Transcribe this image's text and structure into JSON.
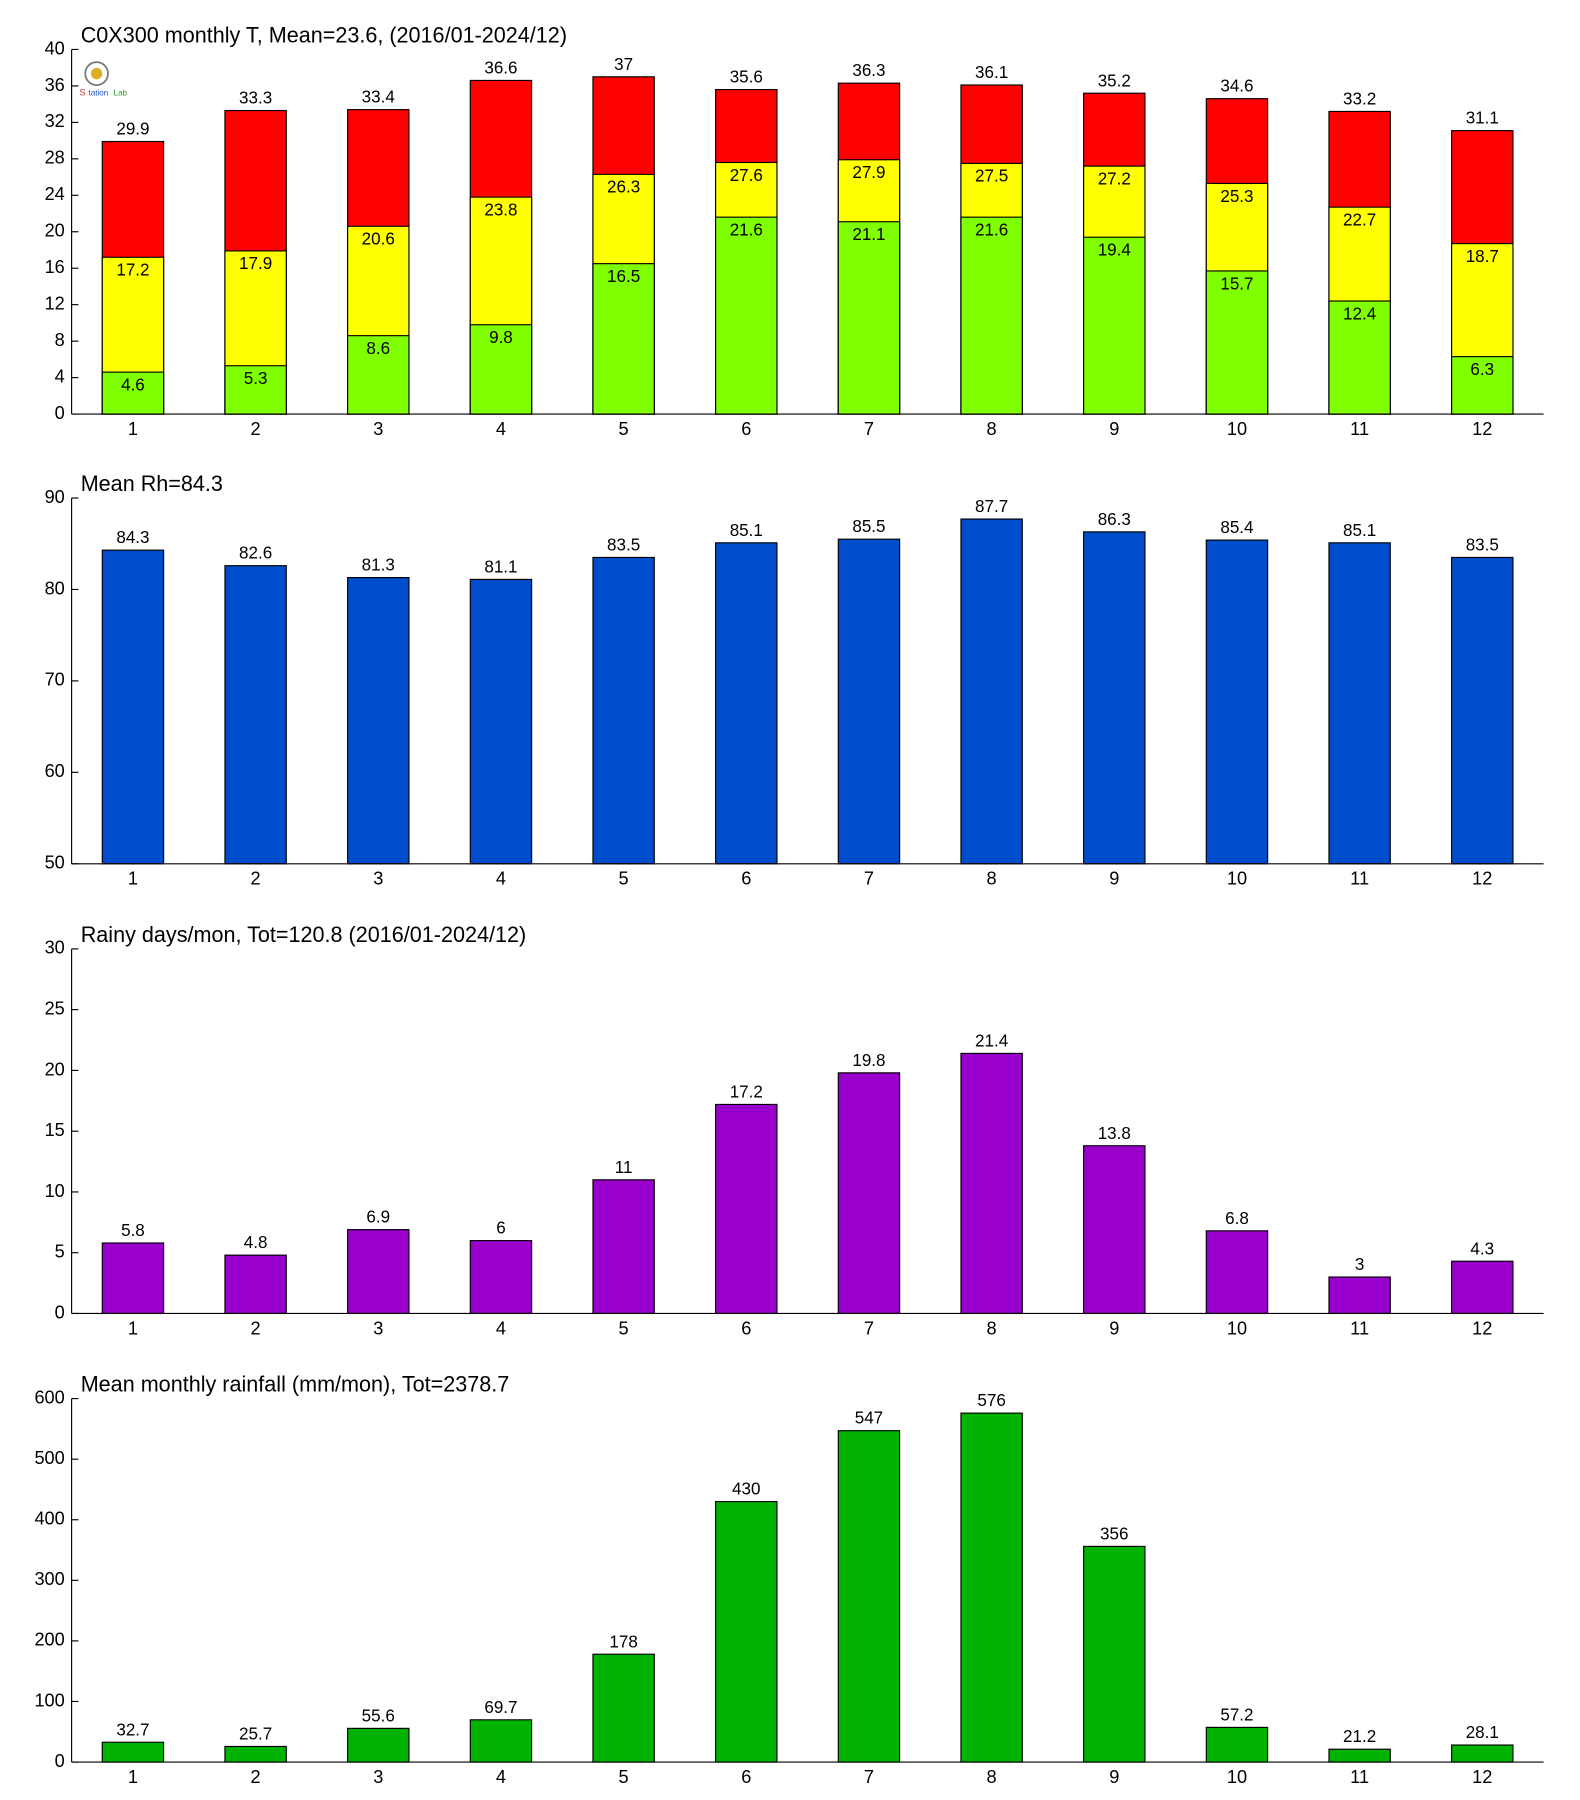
{
  "chart_data": [
    {
      "type": "bar",
      "title": "C0X300 monthly T, Mean=23.6, (2016/01-2024/12)",
      "categories": [
        "1",
        "2",
        "3",
        "4",
        "5",
        "6",
        "7",
        "8",
        "9",
        "10",
        "11",
        "12"
      ],
      "series": [
        {
          "color": "#ff0000",
          "values": [
            29.9,
            33.3,
            33.4,
            36.6,
            37,
            35.6,
            36.3,
            36.1,
            35.2,
            34.6,
            33.2,
            31.1
          ]
        },
        {
          "color": "#ffff00",
          "values": [
            17.2,
            17.9,
            20.6,
            23.8,
            26.3,
            27.6,
            27.9,
            27.5,
            27.2,
            25.3,
            22.7,
            18.7
          ]
        },
        {
          "color": "#80ff00",
          "values": [
            4.6,
            5.3,
            8.6,
            9.8,
            16.5,
            21.6,
            21.1,
            21.6,
            19.4,
            15.7,
            12.4,
            6.3
          ]
        }
      ],
      "ylim": [
        0,
        40
      ],
      "yticks": [
        0,
        4,
        8,
        12,
        16,
        20,
        24,
        28,
        32,
        36,
        40
      ]
    },
    {
      "type": "bar",
      "title": "Mean Rh=84.3",
      "categories": [
        "1",
        "2",
        "3",
        "4",
        "5",
        "6",
        "7",
        "8",
        "9",
        "10",
        "11",
        "12"
      ],
      "series": [
        {
          "color": "#004dcc",
          "values": [
            84.3,
            82.6,
            81.3,
            81.1,
            83.5,
            85.1,
            85.5,
            87.7,
            86.3,
            85.4,
            85.1,
            83.5
          ]
        }
      ],
      "ylim": [
        50,
        90
      ],
      "yticks": [
        50,
        60,
        70,
        80,
        90
      ]
    },
    {
      "type": "bar",
      "title": "Rainy days/mon, Tot=120.8 (2016/01-2024/12)",
      "categories": [
        "1",
        "2",
        "3",
        "4",
        "5",
        "6",
        "7",
        "8",
        "9",
        "10",
        "11",
        "12"
      ],
      "series": [
        {
          "color": "#9900cc",
          "values": [
            5.8,
            4.8,
            6.9,
            6,
            11,
            17.2,
            19.8,
            21.4,
            13.8,
            6.8,
            3,
            4.3
          ]
        }
      ],
      "ylim": [
        0,
        30
      ],
      "yticks": [
        0,
        5,
        10,
        15,
        20,
        25,
        30
      ]
    },
    {
      "type": "bar",
      "title": "Mean monthly rainfall (mm/mon), Tot=2378.7",
      "categories": [
        "1",
        "2",
        "3",
        "4",
        "5",
        "6",
        "7",
        "8",
        "9",
        "10",
        "11",
        "12"
      ],
      "series": [
        {
          "color": "#00b300",
          "values": [
            32.7,
            25.7,
            55.6,
            69.7,
            178,
            430,
            547,
            576,
            356,
            57.2,
            21.2,
            28.1
          ]
        }
      ],
      "ylim": [
        0,
        600
      ],
      "yticks": [
        0,
        100,
        200,
        300,
        400,
        500,
        600
      ]
    }
  ]
}
